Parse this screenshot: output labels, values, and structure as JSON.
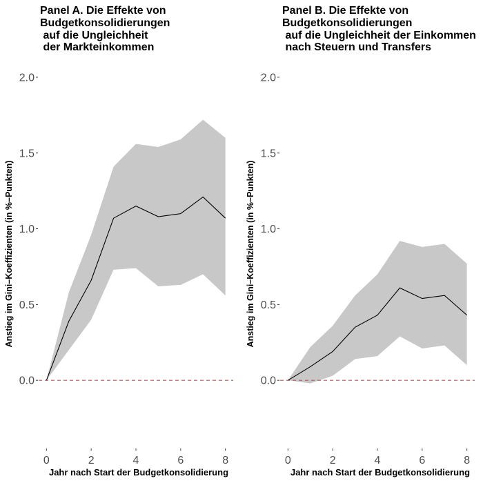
{
  "chart_data": [
    {
      "type": "line",
      "title_lines": [
        "Panel A. Die Effekte von",
        "Budgetkonsolidierungen",
        " auf die Ungleichheit",
        " der Markteinkommen"
      ],
      "xlabel": "Jahr nach Start der Budgetkonsolidierung",
      "ylabel": "Anstieg im Gini–Koeffizienten (in %–Punkten)",
      "x": [
        0,
        1,
        2,
        3,
        4,
        5,
        6,
        7,
        8
      ],
      "series": [
        {
          "values": [
            0.0,
            0.39,
            0.66,
            1.07,
            1.15,
            1.08,
            1.1,
            1.21,
            1.07
          ]
        }
      ],
      "band_upper": [
        0.0,
        0.58,
        0.96,
        1.41,
        1.56,
        1.54,
        1.59,
        1.72,
        1.6
      ],
      "band_lower": [
        0.0,
        0.2,
        0.4,
        0.73,
        0.74,
        0.62,
        0.63,
        0.7,
        0.56
      ],
      "reference_line": 0,
      "xlim": [
        -0.35,
        8.35
      ],
      "ylim": [
        -0.45,
        2.1
      ],
      "x_ticks": [
        0,
        2,
        4,
        6,
        8
      ],
      "y_ticks": [
        0.0,
        0.5,
        1.0,
        1.5,
        2.0
      ],
      "y_tick_labels": [
        "0.0",
        "0.5",
        "1.0",
        "1.5",
        "2.0"
      ],
      "band_color": "#c8c8c8",
      "line_color": "#000000",
      "reference_color": "#c0504d",
      "grid": false
    },
    {
      "type": "line",
      "title_lines": [
        "Panel B. Die Effekte von",
        "Budgetkonsolidierungen",
        " auf die Ungleichheit der Einkommen",
        " nach Steuern und Transfers"
      ],
      "xlabel": "Jahr nach Start der Budgetkonsolidierung",
      "ylabel": "Anstieg im Gini–Koeffizienten (in %–Punkten)",
      "x": [
        0,
        1,
        2,
        3,
        4,
        5,
        6,
        7,
        8
      ],
      "series": [
        {
          "values": [
            0.0,
            0.09,
            0.19,
            0.35,
            0.43,
            0.61,
            0.54,
            0.56,
            0.43
          ]
        }
      ],
      "band_upper": [
        0.0,
        0.22,
        0.36,
        0.56,
        0.7,
        0.92,
        0.88,
        0.9,
        0.77
      ],
      "band_lower": [
        0.0,
        -0.02,
        0.03,
        0.14,
        0.16,
        0.29,
        0.21,
        0.23,
        0.1
      ],
      "reference_line": 0,
      "xlim": [
        -0.35,
        8.35
      ],
      "ylim": [
        -0.45,
        2.1
      ],
      "x_ticks": [
        0,
        2,
        4,
        6,
        8
      ],
      "y_ticks": [
        0.0,
        0.5,
        1.0,
        1.5,
        2.0
      ],
      "y_tick_labels": [
        "0.0",
        "0.5",
        "1.0",
        "1.5",
        "2.0"
      ],
      "band_color": "#c8c8c8",
      "line_color": "#000000",
      "reference_color": "#c0504d",
      "grid": false
    }
  ]
}
